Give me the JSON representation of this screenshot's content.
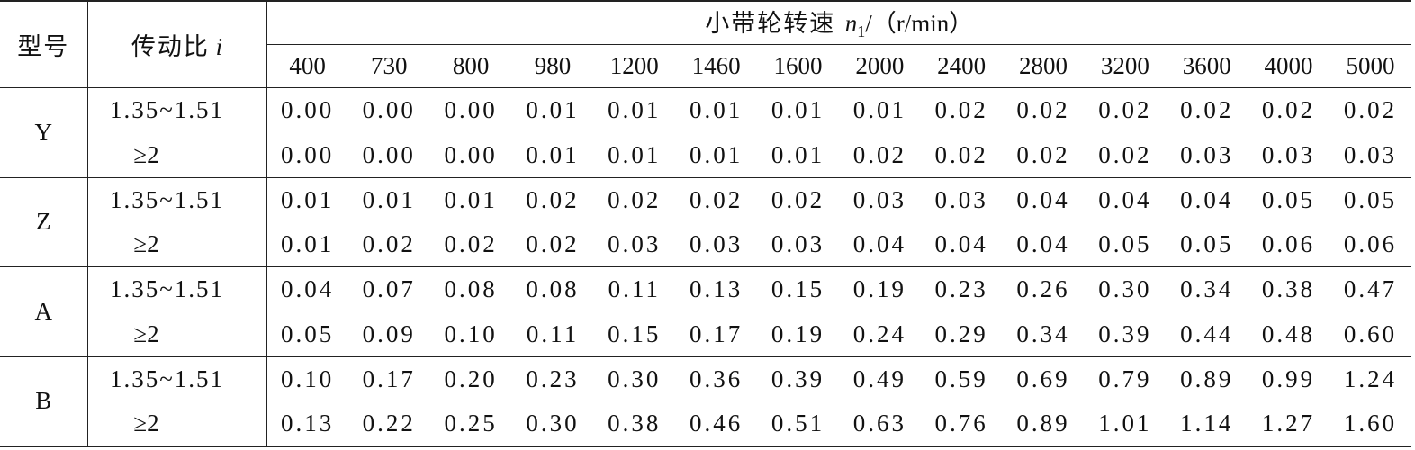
{
  "header": {
    "model_label": "型号",
    "ratio_label": "传动比",
    "ratio_symbol": "i",
    "speed_label_prefix": "小带轮转速 ",
    "speed_symbol": "n",
    "speed_subscript": "1",
    "speed_unit": "/（r/min）",
    "speeds": [
      "400",
      "730",
      "800",
      "980",
      "1200",
      "1460",
      "1600",
      "2000",
      "2400",
      "2800",
      "3200",
      "3600",
      "4000",
      "5000"
    ]
  },
  "groups": [
    {
      "model": "Y",
      "rows": [
        {
          "ratio": "1.35~1.51",
          "values": [
            "0.00",
            "0.00",
            "0.00",
            "0.01",
            "0.01",
            "0.01",
            "0.01",
            "0.01",
            "0.02",
            "0.02",
            "0.02",
            "0.02",
            "0.02",
            "0.02"
          ]
        },
        {
          "ratio": "≥2",
          "values": [
            "0.00",
            "0.00",
            "0.00",
            "0.01",
            "0.01",
            "0.01",
            "0.01",
            "0.02",
            "0.02",
            "0.02",
            "0.02",
            "0.03",
            "0.03",
            "0.03"
          ]
        }
      ]
    },
    {
      "model": "Z",
      "rows": [
        {
          "ratio": "1.35~1.51",
          "values": [
            "0.01",
            "0.01",
            "0.01",
            "0.02",
            "0.02",
            "0.02",
            "0.02",
            "0.03",
            "0.03",
            "0.04",
            "0.04",
            "0.04",
            "0.05",
            "0.05"
          ]
        },
        {
          "ratio": "≥2",
          "values": [
            "0.01",
            "0.02",
            "0.02",
            "0.02",
            "0.03",
            "0.03",
            "0.03",
            "0.04",
            "0.04",
            "0.04",
            "0.05",
            "0.05",
            "0.06",
            "0.06"
          ]
        }
      ]
    },
    {
      "model": "A",
      "rows": [
        {
          "ratio": "1.35~1.51",
          "values": [
            "0.04",
            "0.07",
            "0.08",
            "0.08",
            "0.11",
            "0.13",
            "0.15",
            "0.19",
            "0.23",
            "0.26",
            "0.30",
            "0.34",
            "0.38",
            "0.47"
          ]
        },
        {
          "ratio": "≥2",
          "values": [
            "0.05",
            "0.09",
            "0.10",
            "0.11",
            "0.15",
            "0.17",
            "0.19",
            "0.24",
            "0.29",
            "0.34",
            "0.39",
            "0.44",
            "0.48",
            "0.60"
          ]
        }
      ]
    },
    {
      "model": "B",
      "rows": [
        {
          "ratio": "1.35~1.51",
          "values": [
            "0.10",
            "0.17",
            "0.20",
            "0.23",
            "0.30",
            "0.36",
            "0.39",
            "0.49",
            "0.59",
            "0.69",
            "0.79",
            "0.89",
            "0.99",
            "1.24"
          ]
        },
        {
          "ratio": "≥2",
          "values": [
            "0.13",
            "0.22",
            "0.25",
            "0.30",
            "0.38",
            "0.46",
            "0.51",
            "0.63",
            "0.76",
            "0.89",
            "1.01",
            "1.14",
            "1.27",
            "1.60"
          ]
        }
      ]
    }
  ]
}
